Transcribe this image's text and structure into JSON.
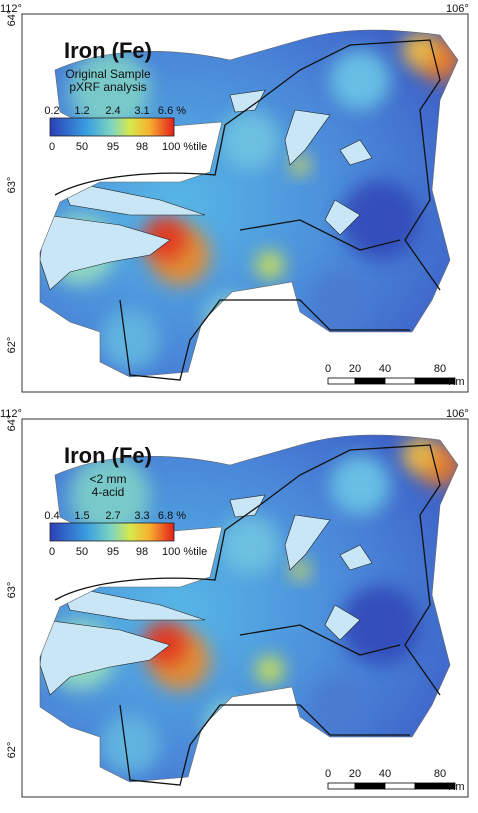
{
  "panels": [
    {
      "lon_labels": [
        "112°",
        "106°"
      ],
      "lat_labels": [
        "64°",
        "63°",
        "62°"
      ],
      "title": "Iron (Fe)",
      "subtitle": [
        "Original Sample",
        "pXRF analysis"
      ],
      "legend": {
        "value_labels": [
          "0.2",
          "1.2",
          "2.4",
          "3.1",
          "6.6 %"
        ],
        "percentile_labels": [
          "0",
          "50",
          "95",
          "98",
          "100 %tile"
        ]
      },
      "scale_bar": {
        "labels": [
          "0",
          "20",
          "40",
          "80"
        ],
        "unit": "Km"
      }
    },
    {
      "lon_labels": [
        "112°",
        "106°"
      ],
      "lat_labels": [
        "64°",
        "63°",
        "62°"
      ],
      "title": "Iron (Fe)",
      "subtitle": [
        "<2 mm",
        "4-acid"
      ],
      "legend": {
        "value_labels": [
          "0.4",
          "1.5",
          "2.7",
          "3.3",
          "6.8 %"
        ],
        "percentile_labels": [
          "0",
          "50",
          "95",
          "98",
          "100 %tile"
        ]
      },
      "scale_bar": {
        "labels": [
          "0",
          "20",
          "40",
          "80"
        ],
        "unit": "Km"
      }
    }
  ]
}
